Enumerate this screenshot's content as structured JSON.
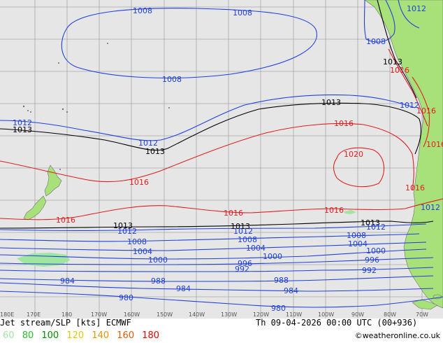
{
  "title_left": "Jet stream/SLP [kts] ECMWF",
  "title_right": "Th 09-04-2026 00:00 UTC (00+936)",
  "credit": "©weatheronline.co.uk",
  "legend": [
    {
      "label": "60",
      "color": "#a0e6a0"
    },
    {
      "label": "80",
      "color": "#2ebd2e"
    },
    {
      "label": "100",
      "color": "#008c00"
    },
    {
      "label": "120",
      "color": "#e6c800"
    },
    {
      "label": "140",
      "color": "#e69600"
    },
    {
      "label": "160",
      "color": "#e65a00"
    },
    {
      "label": "180",
      "color": "#e60000"
    }
  ],
  "colors": {
    "ocean": "#e6e6e6",
    "land": "#a8e07a",
    "grid": "#a8a8a8",
    "isobar_low": "#2040e0",
    "isobar_high": "#e02020",
    "isobar_1013": "#000000"
  },
  "longitude_ticks": [
    "180E",
    "170E",
    "180",
    "170W",
    "160W",
    "150W",
    "140W",
    "130W",
    "120W",
    "110W",
    "100W",
    "90W",
    "80W",
    "70W"
  ],
  "isobar_labels": [
    {
      "text": "1008",
      "kind": "low"
    },
    {
      "text": "1008",
      "kind": "low"
    },
    {
      "text": "1012",
      "kind": "low"
    },
    {
      "text": "1008",
      "kind": "low"
    },
    {
      "text": "1008",
      "kind": "low"
    },
    {
      "text": "1013",
      "kind": "ref"
    },
    {
      "text": "1016",
      "kind": "high"
    },
    {
      "text": "1012",
      "kind": "low"
    },
    {
      "text": "1012",
      "kind": "low"
    },
    {
      "text": "1013",
      "kind": "ref"
    },
    {
      "text": "1012",
      "kind": "low"
    },
    {
      "text": "1013",
      "kind": "ref"
    },
    {
      "text": "1013",
      "kind": "ref"
    },
    {
      "text": "1016",
      "kind": "high"
    },
    {
      "text": "1020",
      "kind": "high"
    },
    {
      "text": "1016",
      "kind": "high"
    },
    {
      "text": "1016",
      "kind": "high"
    },
    {
      "text": "1016",
      "kind": "high"
    },
    {
      "text": "1016",
      "kind": "high"
    },
    {
      "text": "1016",
      "kind": "high"
    },
    {
      "text": "1013",
      "kind": "ref"
    },
    {
      "text": "1013",
      "kind": "ref"
    },
    {
      "text": "1013",
      "kind": "ref"
    },
    {
      "text": "1012",
      "kind": "low"
    },
    {
      "text": "1012",
      "kind": "low"
    },
    {
      "text": "1012",
      "kind": "low"
    },
    {
      "text": "1008",
      "kind": "low"
    },
    {
      "text": "1008",
      "kind": "low"
    },
    {
      "text": "1008",
      "kind": "low"
    },
    {
      "text": "1004",
      "kind": "low"
    },
    {
      "text": "1004",
      "kind": "low"
    },
    {
      "text": "1004",
      "kind": "low"
    },
    {
      "text": "1000",
      "kind": "low"
    },
    {
      "text": "1000",
      "kind": "low"
    },
    {
      "text": "1000",
      "kind": "low"
    },
    {
      "text": "996",
      "kind": "low"
    },
    {
      "text": "996",
      "kind": "low"
    },
    {
      "text": "992",
      "kind": "low"
    },
    {
      "text": "992",
      "kind": "low"
    },
    {
      "text": "988",
      "kind": "low"
    },
    {
      "text": "988",
      "kind": "low"
    },
    {
      "text": "984",
      "kind": "low"
    },
    {
      "text": "984",
      "kind": "low"
    },
    {
      "text": "984",
      "kind": "low"
    },
    {
      "text": "980",
      "kind": "low"
    },
    {
      "text": "980",
      "kind": "low"
    },
    {
      "text": "1016",
      "kind": "high"
    },
    {
      "text": "1016",
      "kind": "high"
    },
    {
      "text": "1012",
      "kind": "low"
    }
  ]
}
